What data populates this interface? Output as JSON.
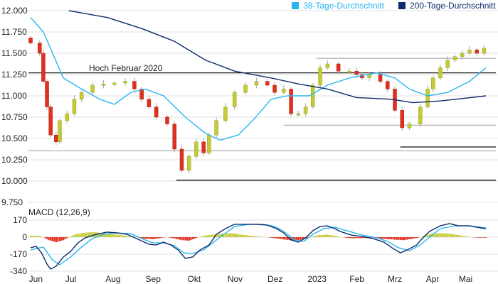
{
  "colors": {
    "ma38": "#29b6f0",
    "ma200": "#0d2a6e",
    "up": "#c5cb35",
    "down": "#e0301e",
    "grid": "#ececec",
    "ref": "#111111",
    "support": "#bbbbbb"
  },
  "chart_data": [
    {
      "type": "candlestick",
      "title": "",
      "legend": [
        {
          "label": "38-Tage-Durchschnitt",
          "color": "#29b6f0"
        },
        {
          "label": "200-Tage-Durchschnitt",
          "color": "#0d2a6e"
        }
      ],
      "legend_position": "top-right",
      "ylim": [
        9750,
        12000
      ],
      "y_ticks": [
        12000,
        11750,
        11500,
        11250,
        11000,
        10750,
        10500,
        10250,
        10000,
        9750
      ],
      "y_tick_labels": [
        "12.000",
        "11.750",
        "11.500",
        "11.250",
        "11.000",
        "10.750",
        "10.500",
        "10.250",
        "10.000",
        "9.750"
      ],
      "xlim_days": [
        0,
        250
      ],
      "x_ticks": [
        {
          "day": 3,
          "label": "Jun"
        },
        {
          "day": 23,
          "label": "Jul"
        },
        {
          "day": 45,
          "label": "Aug"
        },
        {
          "day": 67,
          "label": "Sep"
        },
        {
          "day": 90,
          "label": "Okt"
        },
        {
          "day": 112,
          "label": "Nov"
        },
        {
          "day": 134,
          "label": "Dez"
        },
        {
          "day": 156,
          "label": "2023"
        },
        {
          "day": 179,
          "label": "Feb"
        },
        {
          "day": 200,
          "label": "Mrz"
        },
        {
          "day": 221,
          "label": "Apr"
        },
        {
          "day": 239,
          "label": "Mai"
        }
      ],
      "first_open": 11680,
      "closes": [
        [
          0,
          11620
        ],
        [
          5,
          11500
        ],
        [
          7,
          11170
        ],
        [
          9,
          10870
        ],
        [
          11,
          10540
        ],
        [
          14,
          10460
        ],
        [
          16,
          10710
        ],
        [
          20,
          10790
        ],
        [
          24,
          10960
        ],
        [
          28,
          11040
        ],
        [
          34,
          11125
        ],
        [
          40,
          11140
        ],
        [
          46,
          11150
        ],
        [
          52,
          11170
        ],
        [
          57,
          11080
        ],
        [
          61,
          10960
        ],
        [
          65,
          10870
        ],
        [
          69,
          10750
        ],
        [
          75,
          10670
        ],
        [
          79,
          10375
        ],
        [
          83,
          10125
        ],
        [
          87,
          10290
        ],
        [
          91,
          10460
        ],
        [
          95,
          10330
        ],
        [
          98,
          10540
        ],
        [
          102,
          10710
        ],
        [
          107,
          10870
        ],
        [
          112,
          11040
        ],
        [
          118,
          11125
        ],
        [
          124,
          11170
        ],
        [
          130,
          11125
        ],
        [
          134,
          11040
        ],
        [
          139,
          11080
        ],
        [
          143,
          10790
        ],
        [
          147,
          10790
        ],
        [
          151,
          10870
        ],
        [
          155,
          11125
        ],
        [
          159,
          11330
        ],
        [
          163,
          11375
        ],
        [
          169,
          11290
        ],
        [
          175,
          11290
        ],
        [
          179,
          11250
        ],
        [
          182,
          11210
        ],
        [
          186,
          11250
        ],
        [
          192,
          11170
        ],
        [
          196,
          11080
        ],
        [
          200,
          10830
        ],
        [
          204,
          10625
        ],
        [
          208,
          10670
        ],
        [
          214,
          10870
        ],
        [
          218,
          11080
        ],
        [
          221,
          11210
        ],
        [
          225,
          11330
        ],
        [
          229,
          11420
        ],
        [
          233,
          11460
        ],
        [
          237,
          11500
        ],
        [
          241,
          11540
        ],
        [
          245,
          11500
        ],
        [
          249,
          11560
        ]
      ],
      "ma38": [
        [
          0,
          11920
        ],
        [
          7,
          11750
        ],
        [
          18,
          11210
        ],
        [
          28,
          11080
        ],
        [
          38,
          10960
        ],
        [
          46,
          10900
        ],
        [
          55,
          11040
        ],
        [
          63,
          11080
        ],
        [
          73,
          11000
        ],
        [
          85,
          10750
        ],
        [
          96,
          10560
        ],
        [
          104,
          10480
        ],
        [
          114,
          10540
        ],
        [
          122,
          10710
        ],
        [
          132,
          10960
        ],
        [
          141,
          11000
        ],
        [
          153,
          11000
        ],
        [
          163,
          11125
        ],
        [
          175,
          11210
        ],
        [
          190,
          11270
        ],
        [
          200,
          11210
        ],
        [
          208,
          11080
        ],
        [
          218,
          11000
        ],
        [
          229,
          11040
        ],
        [
          241,
          11170
        ],
        [
          250,
          11330
        ]
      ],
      "ma200": [
        [
          21,
          12000
        ],
        [
          42,
          11920
        ],
        [
          61,
          11790
        ],
        [
          79,
          11640
        ],
        [
          96,
          11420
        ],
        [
          112,
          11290
        ],
        [
          132,
          11210
        ],
        [
          147,
          11140
        ],
        [
          163,
          11080
        ],
        [
          179,
          10980
        ],
        [
          198,
          10960
        ],
        [
          210,
          10920
        ],
        [
          225,
          10940
        ],
        [
          250,
          11000
        ]
      ],
      "reference_lines": [
        {
          "label": "Hoch Februar 2020",
          "value": 11270,
          "from_day": -2,
          "kind": "ref"
        },
        {
          "label": "",
          "value": 11440,
          "from_day": 157,
          "kind": "support"
        },
        {
          "label": "",
          "value": 10655,
          "from_day": 139,
          "kind": "support"
        },
        {
          "label": "",
          "value": 10355,
          "from_day": -2,
          "kind": "support"
        },
        {
          "label": "",
          "value": 10400,
          "from_day": 203,
          "kind": "ref"
        },
        {
          "label": "",
          "value": 10010,
          "from_day": 80,
          "kind": "ref"
        }
      ]
    },
    {
      "type": "line",
      "title": "MACD (12,26,9)",
      "ylim": [
        -340,
        170
      ],
      "y_ticks": [
        170,
        0,
        -170,
        -340
      ],
      "y_tick_labels": [
        "170",
        "0",
        "-170",
        "-340"
      ],
      "macd": [
        [
          0,
          -106
        ],
        [
          3,
          -92
        ],
        [
          6,
          -156
        ],
        [
          9,
          -269
        ],
        [
          11,
          -319
        ],
        [
          14,
          -290
        ],
        [
          18,
          -198
        ],
        [
          22,
          -142
        ],
        [
          26,
          -57
        ],
        [
          30,
          -7
        ],
        [
          36,
          28
        ],
        [
          42,
          50
        ],
        [
          48,
          42
        ],
        [
          53,
          28
        ],
        [
          59,
          -21
        ],
        [
          65,
          -71
        ],
        [
          69,
          -78
        ],
        [
          73,
          -50
        ],
        [
          77,
          -78
        ],
        [
          81,
          -128
        ],
        [
          85,
          -212
        ],
        [
          89,
          -198
        ],
        [
          93,
          -128
        ],
        [
          98,
          -78
        ],
        [
          102,
          28
        ],
        [
          107,
          85
        ],
        [
          112,
          128
        ],
        [
          118,
          128
        ],
        [
          124,
          128
        ],
        [
          130,
          120
        ],
        [
          135,
          85
        ],
        [
          139,
          42
        ],
        [
          143,
          -28
        ],
        [
          147,
          -50
        ],
        [
          151,
          -7
        ],
        [
          155,
          64
        ],
        [
          159,
          106
        ],
        [
          163,
          113
        ],
        [
          167,
          85
        ],
        [
          170,
          57
        ],
        [
          176,
          21
        ],
        [
          182,
          7
        ],
        [
          188,
          -14
        ],
        [
          194,
          -50
        ],
        [
          199,
          -113
        ],
        [
          203,
          -156
        ],
        [
          206,
          -135
        ],
        [
          212,
          -78
        ],
        [
          215,
          -14
        ],
        [
          219,
          57
        ],
        [
          225,
          113
        ],
        [
          230,
          135
        ],
        [
          235,
          113
        ],
        [
          241,
          113
        ],
        [
          245,
          99
        ],
        [
          250,
          85
        ]
      ],
      "signal": [
        [
          0,
          -128
        ],
        [
          7,
          -99
        ],
        [
          12,
          -227
        ],
        [
          16,
          -276
        ],
        [
          22,
          -198
        ],
        [
          28,
          -99
        ],
        [
          34,
          -14
        ],
        [
          40,
          28
        ],
        [
          46,
          42
        ],
        [
          55,
          35
        ],
        [
          61,
          -14
        ],
        [
          67,
          -57
        ],
        [
          73,
          -57
        ],
        [
          79,
          -85
        ],
        [
          84,
          -156
        ],
        [
          89,
          -163
        ],
        [
          95,
          -128
        ],
        [
          100,
          -57
        ],
        [
          106,
          28
        ],
        [
          112,
          106
        ],
        [
          120,
          128
        ],
        [
          128,
          128
        ],
        [
          134,
          106
        ],
        [
          139,
          57
        ],
        [
          145,
          -28
        ],
        [
          150,
          -42
        ],
        [
          155,
          28
        ],
        [
          161,
          85
        ],
        [
          167,
          99
        ],
        [
          175,
          57
        ],
        [
          182,
          21
        ],
        [
          190,
          -7
        ],
        [
          196,
          -42
        ],
        [
          202,
          -106
        ],
        [
          208,
          -135
        ],
        [
          214,
          -78
        ],
        [
          220,
          14
        ],
        [
          225,
          85
        ],
        [
          233,
          113
        ],
        [
          241,
          113
        ],
        [
          250,
          92
        ]
      ],
      "histogram": [
        [
          0,
          15
        ],
        [
          5,
          12
        ],
        [
          7,
          0
        ],
        [
          10,
          -30
        ],
        [
          14,
          -50
        ],
        [
          18,
          -30
        ],
        [
          21,
          0
        ],
        [
          25,
          30
        ],
        [
          30,
          45
        ],
        [
          35,
          50
        ],
        [
          42,
          35
        ],
        [
          50,
          20
        ],
        [
          56,
          5
        ],
        [
          58,
          0
        ],
        [
          62,
          -15
        ],
        [
          68,
          -20
        ],
        [
          72,
          -5
        ],
        [
          75,
          0
        ],
        [
          78,
          -10
        ],
        [
          83,
          -30
        ],
        [
          87,
          -35
        ],
        [
          90,
          -15
        ],
        [
          92,
          0
        ],
        [
          97,
          20
        ],
        [
          105,
          35
        ],
        [
          110,
          40
        ],
        [
          118,
          20
        ],
        [
          125,
          5
        ],
        [
          130,
          0
        ],
        [
          134,
          -10
        ],
        [
          140,
          -25
        ],
        [
          145,
          -35
        ],
        [
          150,
          -20
        ],
        [
          153,
          0
        ],
        [
          158,
          20
        ],
        [
          163,
          25
        ],
        [
          168,
          10
        ],
        [
          171,
          0
        ],
        [
          175,
          -10
        ],
        [
          182,
          -10
        ],
        [
          188,
          -5
        ],
        [
          192,
          -15
        ],
        [
          200,
          -25
        ],
        [
          205,
          -30
        ],
        [
          210,
          -15
        ],
        [
          214,
          0
        ],
        [
          220,
          35
        ],
        [
          226,
          40
        ],
        [
          232,
          30
        ],
        [
          238,
          10
        ],
        [
          242,
          0
        ],
        [
          246,
          -5
        ],
        [
          250,
          -5
        ]
      ]
    }
  ]
}
